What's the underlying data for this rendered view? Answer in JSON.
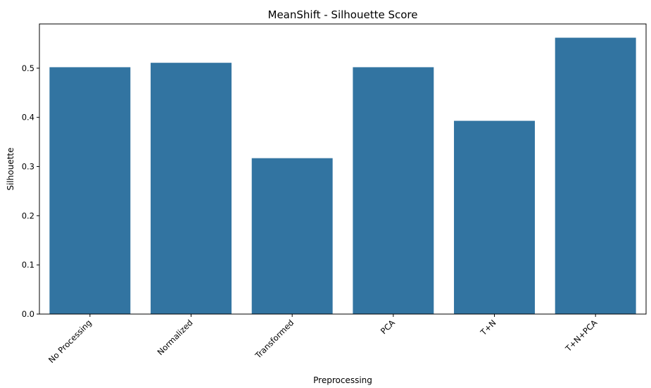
{
  "chart_data": {
    "type": "bar",
    "title": "MeanShift - Silhouette Score",
    "xlabel": "Preprocessing",
    "ylabel": "Silhouette",
    "categories": [
      "No Processing",
      "Normalized",
      "Transformed",
      "PCA",
      "T+N",
      "T+N+PCA"
    ],
    "values": [
      0.502,
      0.511,
      0.317,
      0.502,
      0.393,
      0.562
    ],
    "ylim": [
      0,
      0.59
    ],
    "yticks": [
      "0.0",
      "0.1",
      "0.2",
      "0.3",
      "0.4",
      "0.5"
    ],
    "grid": false,
    "bar_color": "#3274a1"
  }
}
